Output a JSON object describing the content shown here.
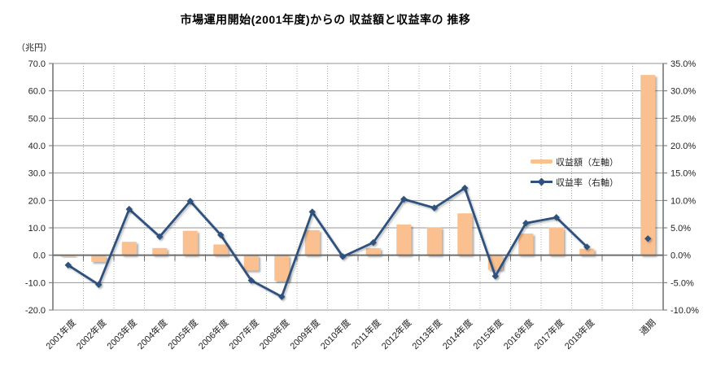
{
  "chart_data": {
    "type": "combo-bar-line",
    "title": "市場運用開始(2001年度)からの 収益額と収益率の 推移",
    "categories": [
      "2001年度",
      "2002年度",
      "2003年度",
      "2004年度",
      "2005年度",
      "2006年度",
      "2007年度",
      "2008年度",
      "2009年度",
      "2010年度",
      "2011年度",
      "2012年度",
      "2013年度",
      "2014年度",
      "2015年度",
      "2016年度",
      "2017年度",
      "2018年度",
      "",
      "通期"
    ],
    "series": [
      {
        "name": "収益額(左軸)",
        "type": "bar",
        "axis": "left",
        "color": "#FAC08F",
        "values": [
          -0.59,
          -2.43,
          4.9,
          2.63,
          8.93,
          3.93,
          -5.58,
          -9.34,
          9.18,
          -0.3,
          2.61,
          11.22,
          10.22,
          15.29,
          -5.31,
          7.91,
          10.08,
          2.37,
          null,
          65.8
        ]
      },
      {
        "name": "収益率(右軸)",
        "type": "line",
        "axis": "right",
        "color": "#2F517E",
        "values": [
          -1.8,
          -5.36,
          8.4,
          3.39,
          9.88,
          3.7,
          -4.59,
          -7.57,
          7.91,
          -0.25,
          2.32,
          10.23,
          8.64,
          12.27,
          -3.81,
          5.86,
          6.9,
          1.52,
          null,
          3.03
        ]
      }
    ],
    "left_axis": {
      "unit": "（兆円）",
      "min": -20,
      "max": 70,
      "step": 10,
      "ticks": [
        "70.0",
        "60.0",
        "50.0",
        "40.0",
        "30.0",
        "20.0",
        "10.0",
        "0.0",
        "-10.0",
        "-20.0"
      ]
    },
    "right_axis": {
      "min": -10,
      "max": 35,
      "step": 5,
      "ticks": [
        "35.0%",
        "30.0%",
        "25.0%",
        "20.0%",
        "15.0%",
        "10.0%",
        "5.0%",
        "0.0%",
        "-5.0%",
        "-10.0%"
      ]
    },
    "legend": {
      "position": "middle-right",
      "items": [
        {
          "label": "収益額（左軸）",
          "swatch": "bar"
        },
        {
          "label": "収益率（右軸）",
          "swatch": "line"
        }
      ]
    },
    "grid": {
      "horizontal": "solid",
      "vertical": "dotted"
    },
    "colors": {
      "bar": "#FAC08F",
      "line": "#2F517E",
      "grid_h": "#969696",
      "grid_v": "#ABABAB",
      "axis": "#6E6E6E",
      "text": "#1F1F1F"
    }
  }
}
